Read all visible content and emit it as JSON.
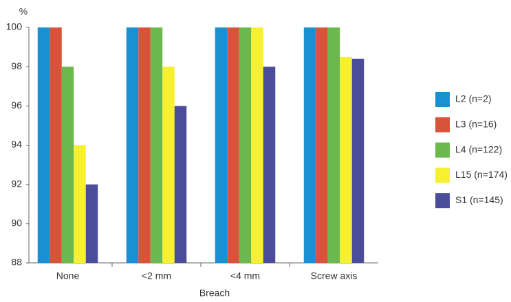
{
  "chart_data": {
    "type": "bar",
    "y_unit": "%",
    "x_label": "Breach",
    "categories": [
      "None",
      "<2 mm",
      "<4 mm",
      "Screw axis"
    ],
    "series": [
      {
        "name": "L2 (n=2)",
        "color": "#1a8fd1",
        "values": [
          100,
          100,
          100,
          100
        ]
      },
      {
        "name": "L3 (n=16)",
        "color": "#d9533a",
        "values": [
          100,
          100,
          100,
          100
        ]
      },
      {
        "name": "L4 (n=122)",
        "color": "#6cb84e",
        "values": [
          98,
          100,
          100,
          100
        ]
      },
      {
        "name": "L15 (n=174)",
        "color": "#f7f030",
        "values": [
          94,
          98,
          100,
          98.5
        ]
      },
      {
        "name": "S1 (n=145)",
        "color": "#4b4d9b",
        "values": [
          92,
          96,
          98,
          98.4
        ]
      }
    ],
    "ylim": [
      88,
      100
    ],
    "yticks": [
      88,
      90,
      92,
      94,
      96,
      98,
      100
    ]
  }
}
